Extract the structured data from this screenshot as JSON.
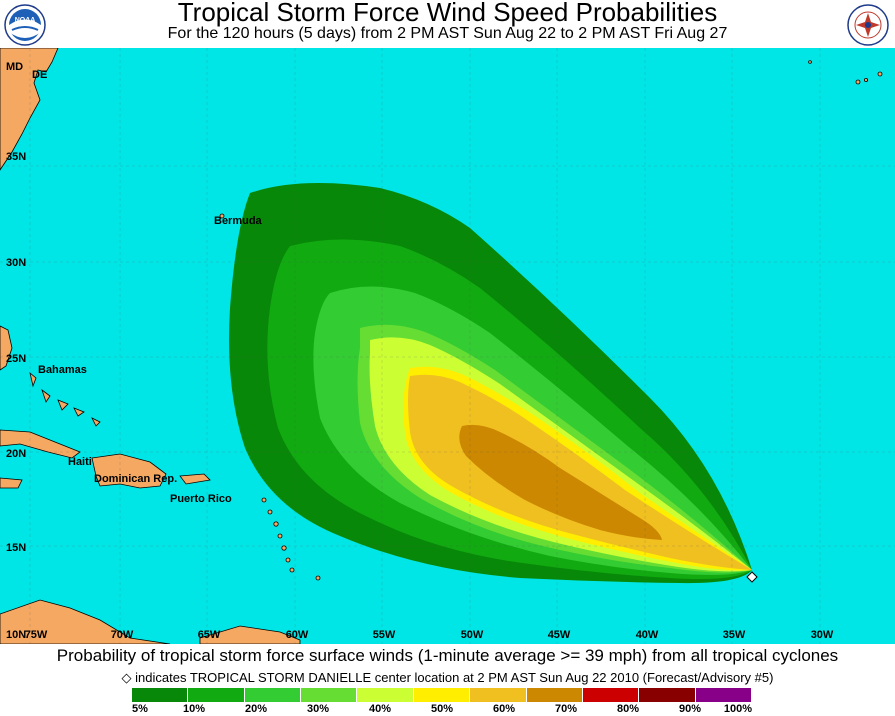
{
  "header": {
    "title": "Tropical Storm Force Wind Speed Probabilities",
    "subtitle": "For the 120 hours (5 days) from 2 PM AST Sun Aug 22 to 2 PM AST Fri Aug 27",
    "left_logo": "NOAA",
    "right_logo": "National Weather Service"
  },
  "map": {
    "ocean_color": "#00e6e6",
    "land_color": "#f5a862",
    "lat_labels": [
      "35N",
      "30N",
      "25N",
      "20N",
      "15N",
      "10N"
    ],
    "lon_labels": [
      "75W",
      "70W",
      "65W",
      "60W",
      "55W",
      "50W",
      "45W",
      "40W",
      "35W",
      "30W"
    ],
    "places": [
      "MD",
      "DE",
      "Bermuda",
      "Bahamas",
      "Haiti",
      "Dominican Rep.",
      "Puerto Rico"
    ],
    "storm_marker": "storm-center-diamond"
  },
  "caption": "Probability of tropical storm force surface winds (1-minute average >= 39 mph) from all tropical cyclones",
  "note": "indicates TROPICAL STORM DANIELLE center location at 2 PM AST Sun Aug 22 2010 (Forecast/Advisory #5)",
  "legend": {
    "labels": [
      "5%",
      "10%",
      "20%",
      "30%",
      "40%",
      "50%",
      "60%",
      "70%",
      "80%",
      "90%",
      "100%"
    ],
    "colors": [
      "#088808",
      "#11aa11",
      "#33cc33",
      "#66dd33",
      "#ccff33",
      "#ffee00",
      "#f0c020",
      "#cc8800",
      "#cc0000",
      "#880000",
      "#880088"
    ]
  }
}
